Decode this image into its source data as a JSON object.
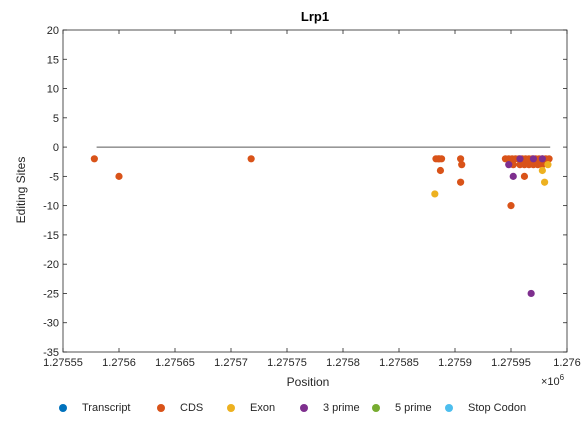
{
  "chart_data": {
    "type": "scatter",
    "title": "Lrp1",
    "xlabel": "Position",
    "ylabel": "Editing Sites",
    "x_exponent_label": "×10",
    "x_exponent_power": "6",
    "xlim": [
      1275550,
      1276000
    ],
    "ylim": [
      -35,
      20
    ],
    "x_ticks": [
      1275550,
      1275600,
      1275650,
      1275700,
      1275750,
      1275800,
      1275850,
      1275900,
      1275950,
      1276000
    ],
    "x_tick_labels": [
      "1.27555",
      "1.2756",
      "1.27565",
      "1.2757",
      "1.27575",
      "1.2758",
      "1.27585",
      "1.2759",
      "1.27595",
      "1.276"
    ],
    "y_ticks": [
      20,
      15,
      10,
      5,
      0,
      -5,
      -10,
      -15,
      -20,
      -25,
      -30,
      -35
    ],
    "y_tick_labels": [
      "20",
      "15",
      "10",
      "5",
      "0",
      "-5",
      "-10",
      "-15",
      "-20",
      "-25",
      "-30",
      "-35"
    ],
    "baseline": {
      "x": [
        1275580,
        1275985
      ],
      "y": 0,
      "color": "#595959"
    },
    "grid": false,
    "legend_placement": "bottom",
    "series": [
      {
        "name": "Transcript",
        "color": "#0072BD",
        "x": [],
        "y": []
      },
      {
        "name": "CDS",
        "color": "#D95319",
        "x": [
          1275578,
          1275600,
          1275718,
          1275883,
          1275885,
          1275887,
          1275886,
          1275888,
          1275905,
          1275906,
          1275905,
          1275945,
          1275948,
          1275951,
          1275954,
          1275957,
          1275960,
          1275963,
          1275966,
          1275969,
          1275972,
          1275975,
          1275978,
          1275981,
          1275984,
          1275952,
          1275958,
          1275962,
          1275966,
          1275970,
          1275974,
          1275978,
          1275962,
          1275950
        ],
        "y": [
          -2,
          -5,
          -2,
          -2,
          -2,
          -4,
          -2,
          -2,
          -2,
          -3,
          -6,
          -2,
          -2,
          -2,
          -2,
          -2,
          -2,
          -2,
          -2,
          -2,
          -2,
          -2,
          -2,
          -2,
          -2,
          -3,
          -3,
          -3,
          -3,
          -3,
          -3,
          -3,
          -5,
          -10
        ]
      },
      {
        "name": "Exon",
        "color": "#EDB120",
        "x": [
          1275882,
          1275978,
          1275980,
          1275983
        ],
        "y": [
          -8,
          -4,
          -6,
          -3
        ]
      },
      {
        "name": "3 prime",
        "color": "#7E2F8E",
        "x": [
          1275948,
          1275952,
          1275958,
          1275970,
          1275978,
          1275968
        ],
        "y": [
          -3,
          -5,
          -2,
          -2,
          -2,
          -25
        ]
      },
      {
        "name": "5 prime",
        "color": "#77AC30",
        "x": [],
        "y": []
      },
      {
        "name": "Stop Codon",
        "color": "#4DBEEE",
        "x": [],
        "y": []
      }
    ]
  }
}
